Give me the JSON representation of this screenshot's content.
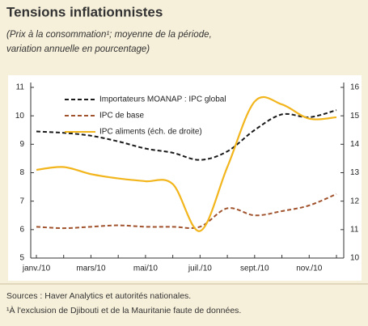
{
  "chart_data": {
    "type": "line",
    "title": "Tensions inflationnistes",
    "subtitle": [
      "(Prix à la consommation¹; moyenne de la période,",
      "variation annuelle en pourcentage)"
    ],
    "categories": [
      "janv./10",
      null,
      "mars/10",
      null,
      "mai/10",
      null,
      "juil./10",
      null,
      "sept./10",
      null,
      "nov./10",
      null
    ],
    "series": [
      {
        "name": "Importateurs MOANAP : IPC global",
        "color": "#1a1a1a",
        "dash": true,
        "values": [
          9.45,
          9.4,
          9.3,
          9.1,
          8.85,
          8.7,
          8.45,
          8.75,
          9.5,
          10.05,
          9.95,
          10.2
        ]
      },
      {
        "name": "IPC de base",
        "color": "#a0522d",
        "dash": true,
        "values": [
          6.1,
          6.05,
          6.1,
          6.15,
          6.1,
          6.1,
          6.1,
          6.75,
          6.5,
          6.65,
          6.85,
          7.25
        ]
      },
      {
        "name": "IPC aliments (éch. de droite)",
        "color": "#f2b51c",
        "dash": false,
        "axis": "y2",
        "values": [
          13.1,
          13.2,
          12.95,
          12.8,
          12.7,
          12.6,
          10.95,
          13.2,
          15.5,
          15.4,
          14.9,
          14.95
        ]
      }
    ],
    "ylim": [
      5,
      11
    ],
    "yticks": [
      5,
      6,
      7,
      8,
      9,
      10,
      11
    ],
    "y2lim": [
      10,
      16
    ],
    "y2ticks": [
      10,
      11,
      12,
      13,
      14,
      15,
      16
    ],
    "legend": "upper left",
    "notes": [
      "Sources : Haver Analytics et autorités nationales.",
      "¹À l'exclusion de Djibouti et de la Mauritanie faute de données."
    ]
  }
}
